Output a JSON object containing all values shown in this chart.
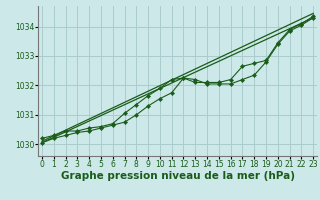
{
  "xlabel": "Graphe pression niveau de la mer (hPa)",
  "background_color": "#cce8e8",
  "grid_color": "#aacccc",
  "line_color": "#1a5c1a",
  "marker_color": "#1a5c1a",
  "x": [
    0,
    1,
    2,
    3,
    4,
    5,
    6,
    7,
    8,
    9,
    10,
    11,
    12,
    13,
    14,
    15,
    16,
    17,
    18,
    19,
    20,
    21,
    22,
    23
  ],
  "y_data1": [
    1030.05,
    1030.2,
    1030.3,
    1030.4,
    1030.45,
    1030.55,
    1030.65,
    1030.75,
    1031.0,
    1031.3,
    1031.55,
    1031.75,
    1032.25,
    1032.2,
    1032.05,
    1032.05,
    1032.05,
    1032.2,
    1032.35,
    1032.8,
    1033.4,
    1033.85,
    1034.05,
    1034.3
  ],
  "y_data2": [
    1030.2,
    1030.3,
    1030.45,
    1030.45,
    1030.55,
    1030.6,
    1030.7,
    1031.05,
    1031.35,
    1031.65,
    1031.9,
    1032.2,
    1032.25,
    1032.1,
    1032.1,
    1032.1,
    1032.2,
    1032.65,
    1032.75,
    1032.85,
    1033.45,
    1033.9,
    1034.1,
    1034.35
  ],
  "ylim": [
    1029.6,
    1034.7
  ],
  "xlim": [
    -0.3,
    23.3
  ],
  "yticks": [
    1030,
    1031,
    1032,
    1033,
    1034
  ],
  "xticks": [
    0,
    1,
    2,
    3,
    4,
    5,
    6,
    7,
    8,
    9,
    10,
    11,
    12,
    13,
    14,
    15,
    16,
    17,
    18,
    19,
    20,
    21,
    22,
    23
  ],
  "tick_fontsize": 5.5,
  "xlabel_fontsize": 7.5
}
